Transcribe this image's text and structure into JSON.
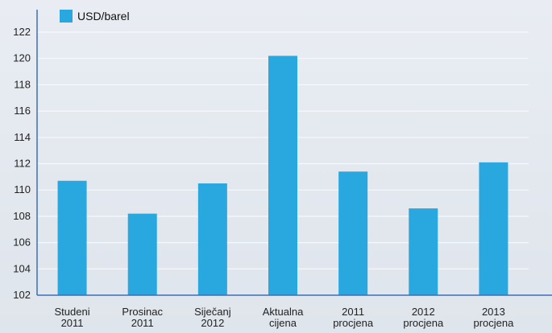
{
  "chart_data": {
    "type": "bar",
    "categories": [
      [
        "Studeni",
        "2011"
      ],
      [
        "Prosinac",
        "2011"
      ],
      [
        "Siječanj",
        "2012"
      ],
      [
        "Aktualna",
        "cijena"
      ],
      [
        "2011",
        "procjena"
      ],
      [
        "2012",
        "procjena"
      ],
      [
        "2013",
        "procjena"
      ]
    ],
    "series": [
      {
        "name": "USD/barel",
        "values": [
          110.7,
          108.2,
          110.5,
          120.2,
          111.4,
          108.6,
          112.1
        ],
        "color": "#29a8e0"
      }
    ],
    "ylim": [
      102,
      122
    ],
    "yticks": [
      102,
      104,
      106,
      108,
      110,
      112,
      114,
      116,
      118,
      120,
      122
    ],
    "grid": true,
    "legend_position": "top-left",
    "axis_color": "#3d6fb5"
  }
}
